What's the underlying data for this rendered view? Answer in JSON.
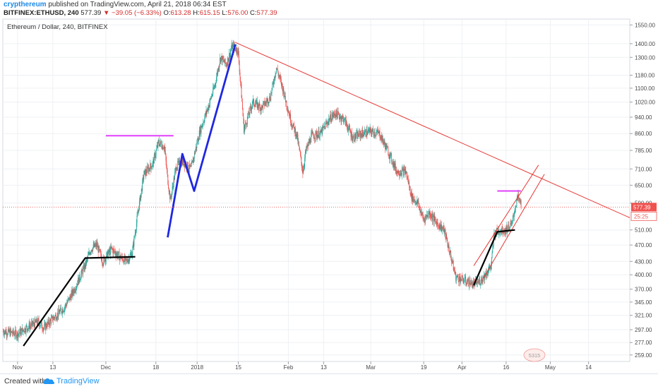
{
  "header": {
    "author": "crypthereum",
    "published": "published on TradingView.com, April 21, 2018 06:34 EST",
    "symbol": "BITFINEX:ETHUSD, 240",
    "last": "577.39",
    "change": "−39.05 (−6.33%)",
    "o_label": "O:",
    "o": "613.28",
    "h_label": "H:",
    "h": "615.15",
    "l_label": "L:",
    "l": "576.00",
    "c_label": "C:",
    "c": "577.39"
  },
  "footer": {
    "created_with": "Created with",
    "brand": "TradingView"
  },
  "colors": {
    "up": "#26a69a",
    "down": "#ef5350",
    "trend": "#e53935",
    "blue_wave": "#1f28e0",
    "black_wave": "#000000",
    "magenta": "#e040fb",
    "price_tag": "#ef5350",
    "grid": "#eef0f4"
  },
  "chart_data": {
    "type": "candlestick",
    "title": "Ethereum / Dollar, 240, BITFINEX",
    "y_scale": "log",
    "ylim": [
      250,
      1600
    ],
    "xlim": [
      "2017-10-27",
      "2018-05-28"
    ],
    "y_ticks": [
      1550,
      1400,
      1300,
      1180,
      1100,
      1020,
      940,
      860,
      785,
      710,
      650,
      590,
      510,
      470,
      430,
      400,
      370,
      345,
      321,
      297,
      277,
      259
    ],
    "y_tick_labels": [
      "1550.00",
      "1400.00",
      "1300.00",
      "1180.00",
      "1100.00",
      "1020.00",
      "940.00",
      "860.00",
      "785.00",
      "710.00",
      "650.00",
      "590.00",
      "510.00",
      "470.00",
      "430.00",
      "400.00",
      "370.00",
      "345.00",
      "321.00",
      "297.00",
      "277.00",
      "259.00"
    ],
    "x_ticks": [
      {
        "date": "2017-11-01",
        "label": "Nov"
      },
      {
        "date": "2017-11-13",
        "label": "13"
      },
      {
        "date": "2017-12-01",
        "label": "Dec"
      },
      {
        "date": "2017-12-18",
        "label": "18"
      },
      {
        "date": "2018-01-01",
        "label": "2018"
      },
      {
        "date": "2018-01-15",
        "label": "15"
      },
      {
        "date": "2018-02-01",
        "label": "Feb"
      },
      {
        "date": "2018-02-13",
        "label": "13"
      },
      {
        "date": "2018-03-01",
        "label": "Mar"
      },
      {
        "date": "2018-03-19",
        "label": "19"
      },
      {
        "date": "2018-04-01",
        "label": "Apr"
      },
      {
        "date": "2018-04-16",
        "label": "16"
      },
      {
        "date": "2018-05-01",
        "label": "May"
      },
      {
        "date": "2018-05-14",
        "label": "14"
      }
    ],
    "price_path": [
      [
        "2017-10-27",
        295
      ],
      [
        "2017-11-01",
        290
      ],
      [
        "2017-11-04",
        300
      ],
      [
        "2017-11-08",
        310
      ],
      [
        "2017-11-10",
        300
      ],
      [
        "2017-11-13",
        315
      ],
      [
        "2017-11-17",
        335
      ],
      [
        "2017-11-20",
        365
      ],
      [
        "2017-11-24",
        420
      ],
      [
        "2017-11-26",
        460
      ],
      [
        "2017-11-28",
        470
      ],
      [
        "2017-11-30",
        430
      ],
      [
        "2017-12-03",
        460
      ],
      [
        "2017-12-06",
        440
      ],
      [
        "2017-12-08",
        430
      ],
      [
        "2017-12-10",
        450
      ],
      [
        "2017-12-12",
        560
      ],
      [
        "2017-12-14",
        690
      ],
      [
        "2017-12-17",
        730
      ],
      [
        "2017-12-19",
        820
      ],
      [
        "2017-12-21",
        800
      ],
      [
        "2017-12-22",
        680
      ],
      [
        "2017-12-23",
        600
      ],
      [
        "2017-12-25",
        720
      ],
      [
        "2017-12-27",
        740
      ],
      [
        "2017-12-30",
        710
      ],
      [
        "2018-01-02",
        870
      ],
      [
        "2018-01-05",
        1000
      ],
      [
        "2018-01-07",
        1110
      ],
      [
        "2018-01-09",
        1300
      ],
      [
        "2018-01-11",
        1250
      ],
      [
        "2018-01-13",
        1380
      ],
      [
        "2018-01-15",
        1350
      ],
      [
        "2018-01-16",
        1100
      ],
      [
        "2018-01-17",
        880
      ],
      [
        "2018-01-20",
        1020
      ],
      [
        "2018-01-23",
        990
      ],
      [
        "2018-01-26",
        1050
      ],
      [
        "2018-01-28",
        1230
      ],
      [
        "2018-01-30",
        1110
      ],
      [
        "2018-02-02",
        920
      ],
      [
        "2018-02-04",
        850
      ],
      [
        "2018-02-06",
        700
      ],
      [
        "2018-02-07",
        780
      ],
      [
        "2018-02-09",
        850
      ],
      [
        "2018-02-12",
        860
      ],
      [
        "2018-02-15",
        930
      ],
      [
        "2018-02-17",
        960
      ],
      [
        "2018-02-20",
        930
      ],
      [
        "2018-02-23",
        840
      ],
      [
        "2018-02-26",
        860
      ],
      [
        "2018-03-01",
        870
      ],
      [
        "2018-03-04",
        860
      ],
      [
        "2018-03-07",
        780
      ],
      [
        "2018-03-10",
        700
      ],
      [
        "2018-03-13",
        700
      ],
      [
        "2018-03-15",
        610
      ],
      [
        "2018-03-17",
        590
      ],
      [
        "2018-03-19",
        540
      ],
      [
        "2018-03-21",
        560
      ],
      [
        "2018-03-23",
        535
      ],
      [
        "2018-03-26",
        510
      ],
      [
        "2018-03-28",
        450
      ],
      [
        "2018-03-30",
        395
      ],
      [
        "2018-04-01",
        390
      ],
      [
        "2018-04-03",
        385
      ],
      [
        "2018-04-05",
        380
      ],
      [
        "2018-04-07",
        385
      ],
      [
        "2018-04-09",
        400
      ],
      [
        "2018-04-11",
        420
      ],
      [
        "2018-04-12",
        500
      ],
      [
        "2018-04-14",
        510
      ],
      [
        "2018-04-16",
        510
      ],
      [
        "2018-04-18",
        525
      ],
      [
        "2018-04-19",
        570
      ],
      [
        "2018-04-20",
        610
      ],
      [
        "2018-04-21",
        590
      ],
      [
        "2018-04-21",
        577.39
      ]
    ],
    "drawings": {
      "black_waves": [
        [
          [
            "2017-11-03",
            272
          ],
          [
            "2017-11-24",
            438
          ],
          [
            "2017-12-11",
            441
          ]
        ],
        [
          [
            "2018-04-05",
            378
          ],
          [
            "2018-04-13",
            505
          ],
          [
            "2018-04-19",
            510
          ]
        ]
      ],
      "blue_wave": [
        [
          "2017-12-22",
          490
        ],
        [
          "2017-12-27",
          770
        ],
        [
          "2017-12-31",
          630
        ],
        [
          "2018-01-14",
          1395
        ]
      ],
      "magenta_lines": [
        {
          "from": [
            "2017-12-01",
            850
          ],
          "to": [
            "2017-12-24",
            850
          ]
        },
        {
          "from": [
            "2018-04-13",
            630
          ],
          "to": [
            "2018-04-21",
            630
          ]
        }
      ],
      "trend_lines": [
        {
          "from": [
            "2018-01-14",
            1410
          ],
          "to": [
            "2018-05-28",
            545
          ]
        },
        {
          "from": [
            "2018-04-05",
            420
          ],
          "to": [
            "2018-04-27",
            725
          ]
        },
        {
          "from": [
            "2018-04-08",
            390
          ],
          "to": [
            "2018-04-29",
            690
          ]
        }
      ]
    },
    "price_line": 577.39,
    "price_labels": [
      "577.39",
      "25:25"
    ],
    "watermark": "5315"
  }
}
